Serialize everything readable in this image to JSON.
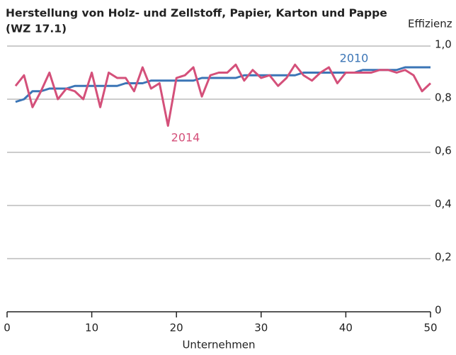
{
  "chart_data": {
    "type": "line",
    "title": [
      "Herstellung von Holz- und Zellstoff, Papier, Karton und Pappe",
      "(WZ 17.1)"
    ],
    "ylabel": "Effizienz",
    "xlabel": "Unternehmen",
    "x": [
      1,
      2,
      3,
      4,
      5,
      6,
      7,
      8,
      9,
      10,
      11,
      12,
      13,
      14,
      15,
      16,
      17,
      18,
      19,
      20,
      21,
      22,
      23,
      24,
      25,
      26,
      27,
      28,
      29,
      30,
      31,
      32,
      33,
      34,
      35,
      36,
      37,
      38,
      39,
      40,
      41,
      42,
      43,
      44,
      45,
      46,
      47,
      48,
      49,
      50
    ],
    "series": [
      {
        "name": "2010",
        "color": "#3b75b6",
        "values": [
          0.79,
          0.8,
          0.83,
          0.83,
          0.84,
          0.84,
          0.84,
          0.85,
          0.85,
          0.85,
          0.85,
          0.85,
          0.85,
          0.86,
          0.86,
          0.86,
          0.87,
          0.87,
          0.87,
          0.87,
          0.87,
          0.87,
          0.88,
          0.88,
          0.88,
          0.88,
          0.88,
          0.89,
          0.89,
          0.89,
          0.89,
          0.89,
          0.89,
          0.89,
          0.9,
          0.9,
          0.9,
          0.9,
          0.9,
          0.9,
          0.9,
          0.91,
          0.91,
          0.91,
          0.91,
          0.91,
          0.92,
          0.92,
          0.92,
          0.92
        ]
      },
      {
        "name": "2014",
        "color": "#d4507a",
        "values": [
          0.85,
          0.89,
          0.77,
          0.83,
          0.9,
          0.8,
          0.84,
          0.83,
          0.8,
          0.9,
          0.77,
          0.9,
          0.88,
          0.88,
          0.83,
          0.92,
          0.84,
          0.86,
          0.7,
          0.88,
          0.89,
          0.92,
          0.81,
          0.89,
          0.9,
          0.9,
          0.93,
          0.87,
          0.91,
          0.88,
          0.89,
          0.85,
          0.88,
          0.93,
          0.89,
          0.87,
          0.9,
          0.92,
          0.86,
          0.9,
          0.9,
          0.9,
          0.9,
          0.91,
          0.91,
          0.9,
          0.91,
          0.89,
          0.83,
          0.86
        ]
      }
    ],
    "xlim": [
      0,
      50
    ],
    "xticks": [
      0,
      10,
      20,
      30,
      40,
      50
    ],
    "ylim": [
      0,
      1
    ],
    "yticks": [
      0,
      {
        "value": 0.2,
        "label": "0,2"
      },
      {
        "value": 0.4,
        "label": "0,4"
      },
      {
        "value": 0.6,
        "label": "0,6"
      },
      {
        "value": 0.8,
        "label": "0,8"
      },
      {
        "value": 1,
        "label": "1,0"
      }
    ],
    "grid": true
  }
}
